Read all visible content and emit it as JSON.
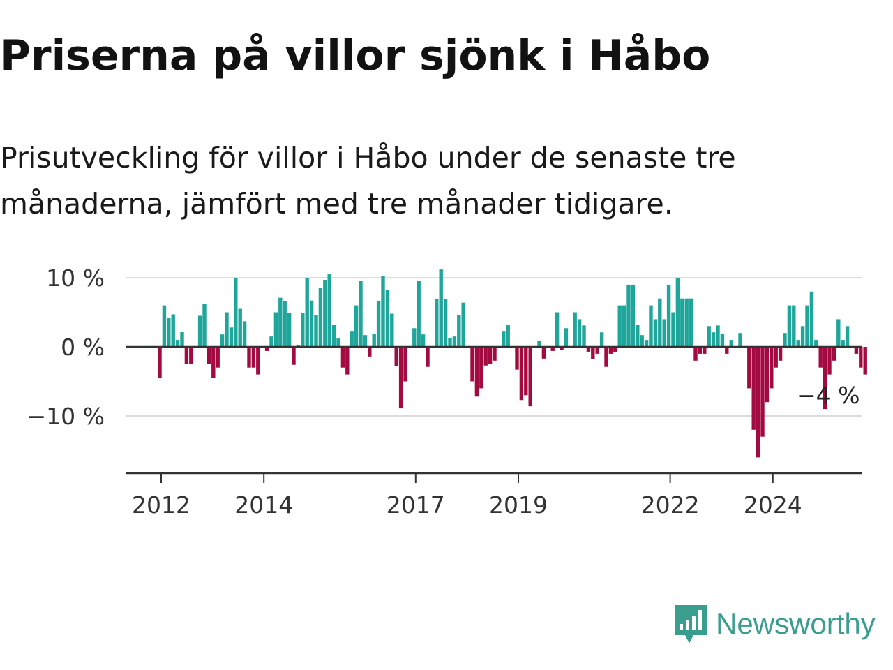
{
  "title": "Priserna på villor sjönk i Håbo",
  "subtitle": "Prisutveckling för villor i Håbo under de senaste tre månaderna, jämfört med tre månader tidigare.",
  "brand": {
    "name": "Newsworthy",
    "icon": "newsworthy-logo-icon"
  },
  "colors": {
    "positive": "#1fa69b",
    "negative": "#a30a3f",
    "grid": "#dcdcdc",
    "axis": "#333333"
  },
  "chart_data": {
    "type": "bar",
    "title": "Priserna på villor sjönk i Håbo",
    "ylabel": "",
    "xlabel": "",
    "ylim": [
      -18,
      11
    ],
    "yticks": [
      10,
      0,
      -10
    ],
    "ytick_labels": [
      "10 %",
      "0 %",
      "−10 %"
    ],
    "xticks": [
      {
        "label": "2012",
        "index": 0
      },
      {
        "label": "2014",
        "index": 23
      },
      {
        "label": "2017",
        "index": 57
      },
      {
        "label": "2019",
        "index": 80
      },
      {
        "label": "2022",
        "index": 114
      },
      {
        "label": "2024",
        "index": 137
      }
    ],
    "end_label": "−4 %",
    "values": [
      -4.5,
      6,
      4.2,
      4.7,
      1,
      2.2,
      -2.5,
      -2.5,
      0,
      4.5,
      6.2,
      -2.5,
      -4.5,
      -3,
      1.8,
      5,
      2.8,
      10,
      5.5,
      3.7,
      -3,
      -3,
      -4,
      0,
      -0.6,
      1.5,
      5,
      7.1,
      6.6,
      4.9,
      -2.6,
      0.3,
      4.9,
      10,
      6.7,
      4.6,
      8.5,
      9.7,
      10.5,
      3.2,
      1.2,
      -3,
      -4,
      2.3,
      6,
      9.5,
      1.7,
      -1.4,
      1.9,
      6.6,
      10.2,
      8.2,
      4.8,
      -2.8,
      -8.9,
      -5,
      0,
      2.7,
      9.5,
      1.8,
      -2.9,
      0,
      6.9,
      11.2,
      6.9,
      1.3,
      1.5,
      4.6,
      6.4,
      0,
      -5,
      -7.2,
      -6,
      -2.7,
      -2.5,
      -2,
      0,
      2.3,
      3.2,
      0,
      -3.3,
      -7.7,
      -7,
      -8.6,
      0,
      0.9,
      -1.7,
      0,
      -0.6,
      5,
      -0.5,
      2.7,
      -0.2,
      5,
      4,
      3.1,
      -0.7,
      -1.8,
      -1,
      2.1,
      -2.9,
      -1,
      -0.7,
      6,
      6,
      9,
      9,
      3.2,
      1.7,
      1,
      6,
      4,
      7,
      4,
      9,
      5,
      10,
      7,
      7,
      7,
      -2,
      -1,
      -1,
      3,
      2.1,
      3.1,
      1.9,
      -1,
      1,
      0,
      2,
      0,
      -6,
      -12,
      -16,
      -13,
      -8,
      -6,
      -3,
      -2,
      2,
      6,
      6,
      1,
      3,
      6,
      8,
      1,
      -3,
      -9,
      -4,
      -2,
      4,
      1,
      3,
      0,
      -1,
      -3,
      -4
    ]
  }
}
